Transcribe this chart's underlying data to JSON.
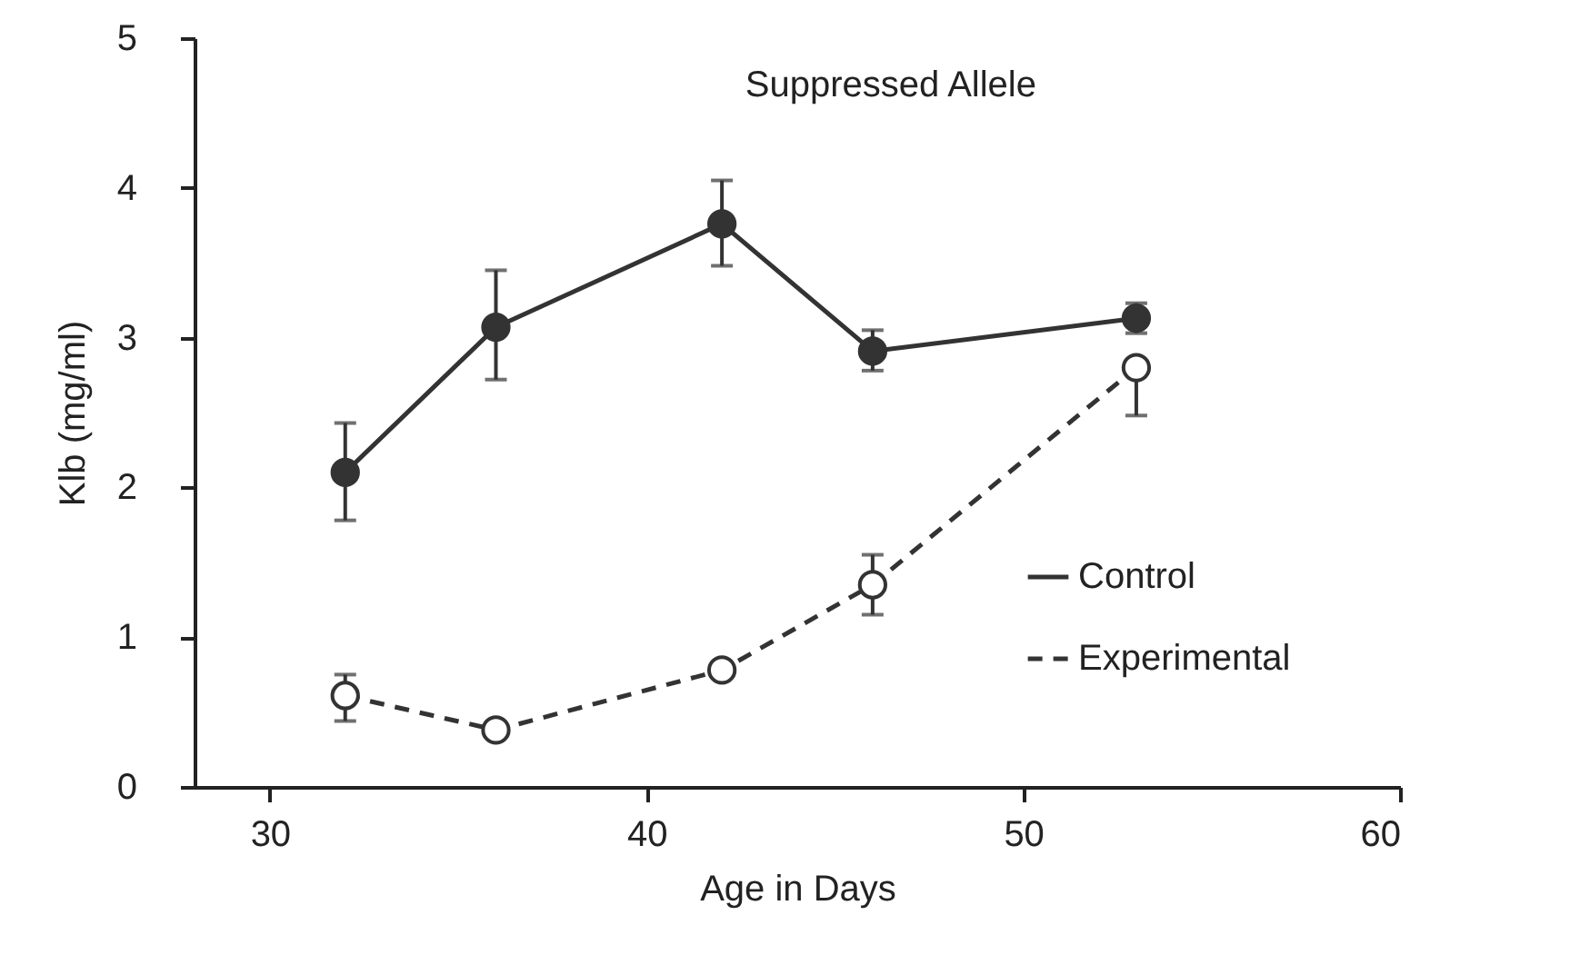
{
  "chart_data": {
    "type": "line",
    "title": "Suppressed Allele",
    "xlabel": "Age in Days",
    "ylabel": "Klb (mg/ml)",
    "x": [
      32,
      36,
      42,
      46,
      53
    ],
    "series": [
      {
        "name": "Control",
        "color": "#333333",
        "line_style": "solid",
        "values": [
          2.1,
          3.07,
          3.76,
          2.91,
          3.13
        ],
        "errors": [
          [
            1.78,
            2.43
          ],
          [
            2.72,
            3.45
          ],
          [
            3.48,
            4.05
          ],
          [
            2.78,
            3.05
          ],
          [
            3.03,
            3.23
          ]
        ]
      },
      {
        "name": "Experimental",
        "color": "#333333",
        "line_style": "dashed",
        "values": [
          0.61,
          0.38,
          0.78,
          1.35,
          2.8
        ],
        "errors": [
          [
            0.44,
            0.75
          ],
          null,
          null,
          [
            1.15,
            1.55
          ],
          [
            2.48,
            2.8
          ]
        ]
      }
    ],
    "xlim": [
      28,
      60
    ],
    "xticks": [
      30,
      40,
      50,
      60
    ],
    "ylim": [
      0,
      5
    ],
    "yticks": [
      0,
      1,
      2,
      3,
      4,
      5
    ],
    "grid": false,
    "legend": "bottom right",
    "marker": "circle"
  }
}
